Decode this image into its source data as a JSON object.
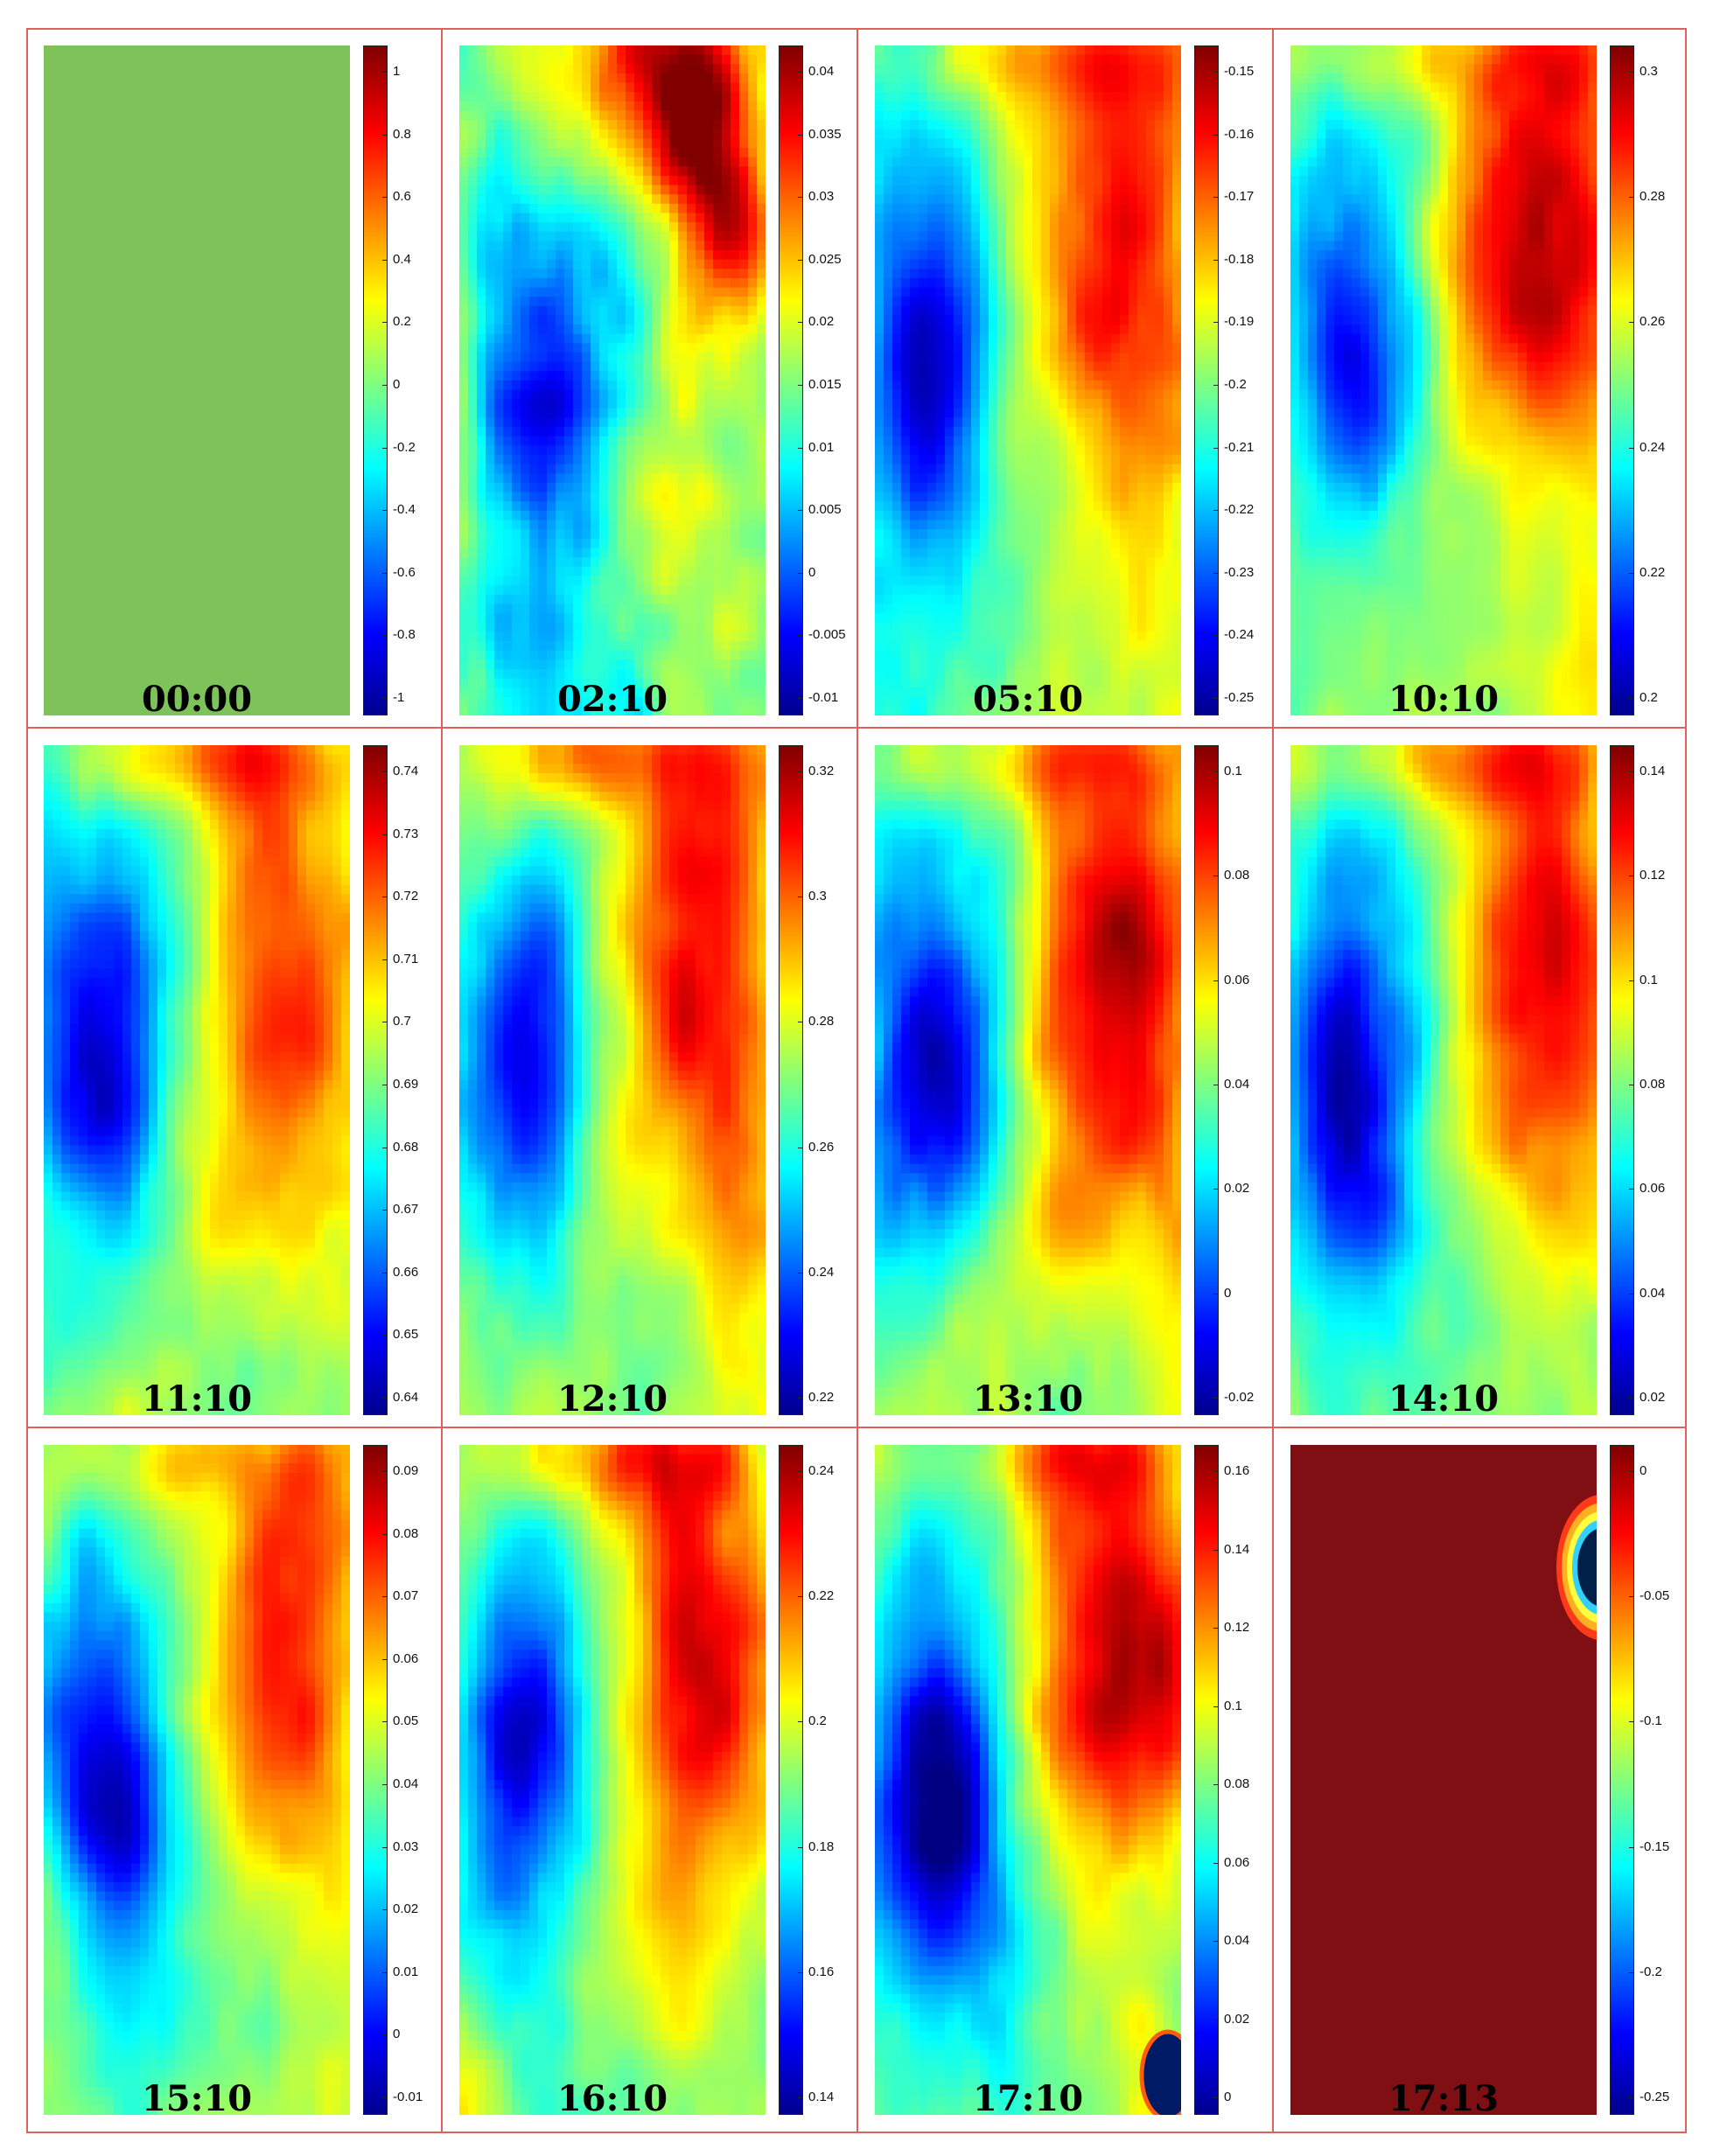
{
  "panels": [
    {
      "time": "00:00",
      "ticks": [
        "1",
        "0.8",
        "0.6",
        "0.4",
        "0.2",
        "0",
        "-0.2",
        "-0.4",
        "-0.6",
        "-0.8",
        "-1"
      ],
      "field": "uniform"
    },
    {
      "time": "02:10",
      "ticks": [
        "0.04",
        "0.035",
        "0.03",
        "0.025",
        "0.02",
        "0.015",
        "0.01",
        "0.005",
        "0",
        "-0.005",
        "-0.01"
      ],
      "field": "early"
    },
    {
      "time": "05:10",
      "ticks": [
        "-0.15",
        "-0.16",
        "-0.17",
        "-0.18",
        "-0.19",
        "-0.2",
        "-0.21",
        "-0.22",
        "-0.23",
        "-0.24",
        "-0.25"
      ],
      "field": "mid"
    },
    {
      "time": "10:10",
      "ticks": [
        "0.3",
        "0.28",
        "0.26",
        "0.24",
        "0.22",
        "0.2"
      ],
      "field": "mid"
    },
    {
      "time": "11:10",
      "ticks": [
        "0.74",
        "0.73",
        "0.72",
        "0.71",
        "0.7",
        "0.69",
        "0.68",
        "0.67",
        "0.66",
        "0.65",
        "0.64"
      ],
      "field": "mid"
    },
    {
      "time": "12:10",
      "ticks": [
        "0.32",
        "0.3",
        "0.28",
        "0.26",
        "0.24",
        "0.22"
      ],
      "field": "mid"
    },
    {
      "time": "13:10",
      "ticks": [
        "0.1",
        "0.08",
        "0.06",
        "0.04",
        "0.02",
        "0",
        "-0.02"
      ],
      "field": "mid"
    },
    {
      "time": "14:10",
      "ticks": [
        "0.14",
        "0.12",
        "0.1",
        "0.08",
        "0.06",
        "0.04",
        "0.02"
      ],
      "field": "mid"
    },
    {
      "time": "15:10",
      "ticks": [
        "0.09",
        "0.08",
        "0.07",
        "0.06",
        "0.05",
        "0.04",
        "0.03",
        "0.02",
        "0.01",
        "0",
        "-0.01"
      ],
      "field": "mid"
    },
    {
      "time": "16:10",
      "ticks": [
        "0.24",
        "0.22",
        "0.2",
        "0.18",
        "0.16",
        "0.14"
      ],
      "field": "mid"
    },
    {
      "time": "17:10",
      "ticks": [
        "0.16",
        "0.14",
        "0.12",
        "0.1",
        "0.08",
        "0.06",
        "0.04",
        "0.02",
        "0"
      ],
      "field": "late"
    },
    {
      "time": "17:13",
      "ticks": [
        "0",
        "-0.05",
        "-0.1",
        "-0.15",
        "-0.2",
        "-0.25"
      ],
      "field": "failure"
    }
  ],
  "chart_data": {
    "type": "heatmap",
    "colormap": "jet",
    "panels": [
      {
        "label": "00:00",
        "colorbar_range": [
          -1,
          1
        ]
      },
      {
        "label": "02:10",
        "colorbar_range": [
          -0.013,
          0.044
        ]
      },
      {
        "label": "05:10",
        "colorbar_range": [
          -0.25,
          -0.145
        ]
      },
      {
        "label": "10:10",
        "colorbar_range": [
          0.195,
          0.315
        ]
      },
      {
        "label": "11:10",
        "colorbar_range": [
          0.635,
          0.745
        ]
      },
      {
        "label": "12:10",
        "colorbar_range": [
          0.21,
          0.335
        ]
      },
      {
        "label": "13:10",
        "colorbar_range": [
          -0.02,
          0.12
        ]
      },
      {
        "label": "14:10",
        "colorbar_range": [
          0.02,
          0.15
        ]
      },
      {
        "label": "15:10",
        "colorbar_range": [
          -0.017,
          0.098
        ]
      },
      {
        "label": "16:10",
        "colorbar_range": [
          0.125,
          0.26
        ]
      },
      {
        "label": "17:10",
        "colorbar_range": [
          -0.005,
          0.175
        ]
      },
      {
        "label": "17:13",
        "colorbar_range": [
          -0.275,
          0
        ]
      }
    ]
  }
}
